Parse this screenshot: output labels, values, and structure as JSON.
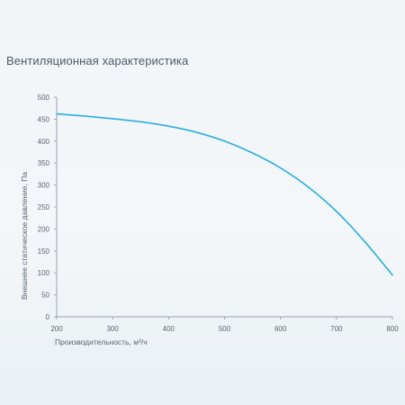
{
  "title": "Вентиляционная характеристика",
  "chart_data": {
    "type": "line",
    "title": "Вентиляционная характеристика",
    "xlabel": "Производительность, м³/ч",
    "ylabel": "Внешнее статическое давление, Па",
    "xlim": [
      200,
      800
    ],
    "ylim": [
      0,
      500
    ],
    "x_ticks": [
      200,
      300,
      400,
      500,
      600,
      700,
      800
    ],
    "y_ticks": [
      0,
      50,
      100,
      150,
      200,
      250,
      300,
      350,
      400,
      450,
      500
    ],
    "grid": false,
    "line_color": "#2aaee0",
    "series": [
      {
        "x": [
          200,
          250,
          300,
          350,
          400,
          450,
          500,
          550,
          600,
          650,
          700,
          750,
          800
        ],
        "values": [
          462,
          457,
          451,
          444,
          434,
          420,
          400,
          373,
          339,
          295,
          240,
          172,
          95
        ]
      }
    ]
  }
}
